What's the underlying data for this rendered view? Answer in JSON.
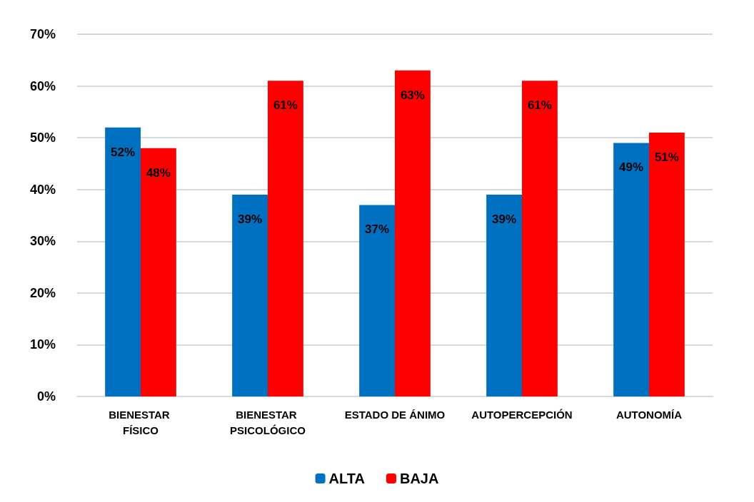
{
  "chart_data": {
    "type": "bar",
    "categories": [
      "BIENESTAR FÍSICO",
      "BIENESTAR PSICOLÓGICO",
      "ESTADO DE ÁNIMO",
      "AUTOPERCEPCIÓN",
      "AUTONOMÍA"
    ],
    "series": [
      {
        "name": "ALTA",
        "color": "#0070c0",
        "values": [
          52,
          39,
          37,
          39,
          49
        ],
        "value_labels": [
          "52%",
          "39%",
          "37%",
          "39%",
          "49%"
        ]
      },
      {
        "name": "BAJA",
        "color": "#ff0000",
        "values": [
          48,
          61,
          63,
          61,
          51
        ],
        "value_labels": [
          "48%",
          "61%",
          "63%",
          "61%",
          "51%"
        ]
      }
    ],
    "ylim": [
      0,
      70
    ],
    "yticks": [
      {
        "value": 0,
        "label": "0%"
      },
      {
        "value": 10,
        "label": "10%"
      },
      {
        "value": 20,
        "label": "20%"
      },
      {
        "value": 30,
        "label": "30%"
      },
      {
        "value": 40,
        "label": "40%"
      },
      {
        "value": 50,
        "label": "50%"
      },
      {
        "value": 60,
        "label": "60%"
      },
      {
        "value": 70,
        "label": "70%"
      }
    ],
    "grid": "y",
    "legend": "bottom"
  }
}
